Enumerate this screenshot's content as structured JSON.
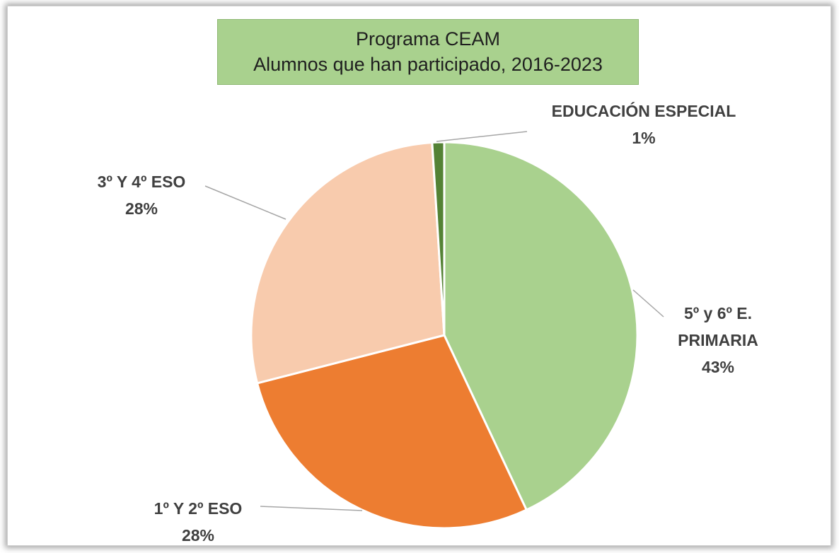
{
  "chart_data": {
    "type": "pie",
    "title": "Programa CEAM",
    "subtitle": "Alumnos que han participado, 2016-2023",
    "categories": [
      "5º y 6º E. PRIMARIA",
      "1º Y 2º ESO",
      "3º Y 4º ESO",
      "EDUCACIÓN ESPECIAL"
    ],
    "values": [
      43,
      28,
      28,
      1
    ],
    "value_labels": [
      "43%",
      "28%",
      "28%",
      "1%"
    ],
    "colors": [
      "#a9d18e",
      "#ed7d31",
      "#f8cbad",
      "#548235"
    ]
  }
}
